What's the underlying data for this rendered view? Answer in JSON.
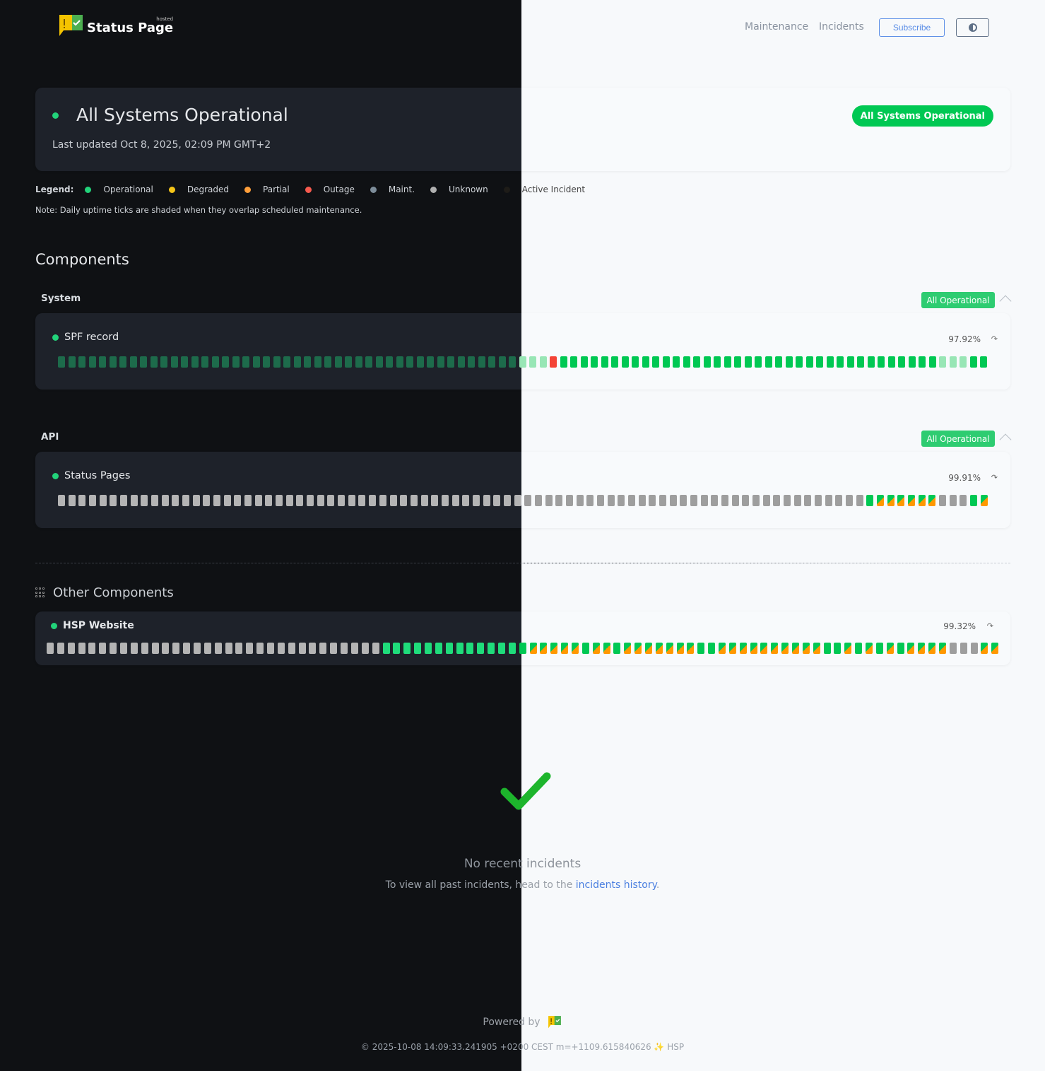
{
  "header": {
    "logo_text": "Status Page",
    "logo_hosted": "hosted",
    "nav": [
      "Maintenance",
      "Incidents"
    ],
    "subscribe_label": "Subscribe",
    "theme_icon": "half-circle-icon"
  },
  "hero": {
    "title": "All Systems Operational",
    "updated": "Last updated Oct 8, 2025, 02:09 PM GMT+2",
    "badge": "All Systems Operational"
  },
  "legend": {
    "label": "Legend:",
    "items": [
      {
        "label": "Operational",
        "color": "#22d37a"
      },
      {
        "label": "Degraded",
        "color": "#f5c518"
      },
      {
        "label": "Partial",
        "color": "#ff9f3a"
      },
      {
        "label": "Outage",
        "color": "#f65a4e"
      },
      {
        "label": "Maint.",
        "color": "#7d8d9a"
      },
      {
        "label": "Unknown",
        "color": "#b0b0b0"
      },
      {
        "label": "Active Incident",
        "color": "#1e1c18"
      }
    ],
    "note": "Note: Daily uptime ticks are shaded when they overlap scheduled maintenance."
  },
  "components": {
    "title": "Components",
    "groups": [
      {
        "name": "System",
        "badge": "All Operational",
        "items": [
          {
            "name": "SPF record",
            "uptime": "97.92%",
            "ticks": "ooooooooooooooooooooooooooooooooooooooooooooommmxooooooooooooooooooooooooooooooooooooommmoo"
          }
        ]
      },
      {
        "name": "API",
        "badge": "All Operational",
        "items": [
          {
            "name": "Status Pages",
            "uptime": "99.91%",
            "ticks": "uuuuuuuuuuuuuuuuuuuuuuuuuuuuuuuuuuuuuuuuuuuuuuuuuuuuuuuuuuuuuuuuuuuuuuuuuuuuuuossssssuuuos"
          }
        ]
      }
    ]
  },
  "other": {
    "title": "Other Components",
    "items": [
      {
        "name": "HSP Website",
        "uptime": "99.32%",
        "ticks": "uuuuuuuuuuuuuuuuuuuuuuuuuuuuuuuuoooooooooooooosssssossosssssssoossssssssssoosososossssuuuss"
      }
    ]
  },
  "incidents": {
    "title": "No recent incidents",
    "text": "To view all past incidents, head to the ",
    "link": "incidents history",
    "end": "."
  },
  "footer": {
    "powered": "Powered by",
    "copyright": "© 2025-10-08 14:09:33.241905 +0200 CEST m=+1109.615840626 ✨ HSP"
  }
}
